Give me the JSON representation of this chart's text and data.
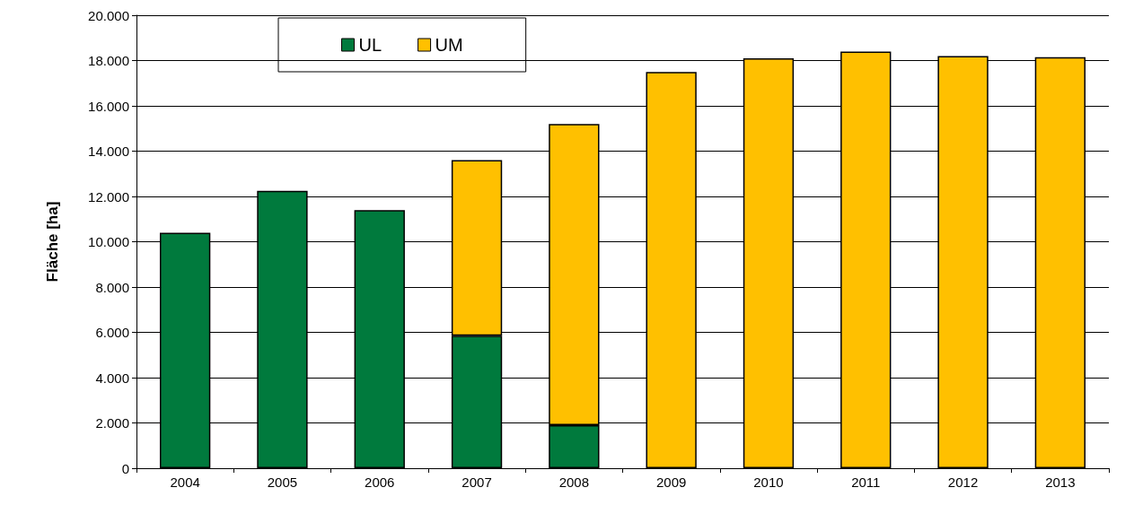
{
  "chart_data": {
    "type": "bar",
    "stacked": true,
    "ylabel": "Fläche [ha]",
    "categories": [
      "2004",
      "2005",
      "2006",
      "2007",
      "2008",
      "2009",
      "2010",
      "2011",
      "2012",
      "2013"
    ],
    "series": [
      {
        "name": "UL",
        "color": "#007a3d",
        "values": [
          10400,
          12250,
          11400,
          5850,
          1900,
          null,
          null,
          null,
          null,
          null
        ]
      },
      {
        "name": "UM",
        "color": "#ffc000",
        "values": [
          null,
          null,
          null,
          7750,
          13300,
          17500,
          18100,
          18400,
          18200,
          18150
        ]
      }
    ],
    "ylim": [
      0,
      20000
    ],
    "yticks": [
      0,
      {
        "value": 2000,
        "label": "2.000"
      },
      {
        "value": 4000,
        "label": "4.000"
      },
      {
        "value": 6000,
        "label": "6.000"
      },
      {
        "value": 8000,
        "label": "8.000"
      },
      {
        "value": 10000,
        "label": "10.000"
      },
      {
        "value": 12000,
        "label": "12.000"
      },
      {
        "value": 14000,
        "label": "14.000"
      },
      {
        "value": 16000,
        "label": "16.000"
      },
      {
        "value": 18000,
        "label": "18.000"
      },
      {
        "value": 20000,
        "label": "20.000"
      }
    ],
    "grid": "y",
    "legend": "top left"
  }
}
